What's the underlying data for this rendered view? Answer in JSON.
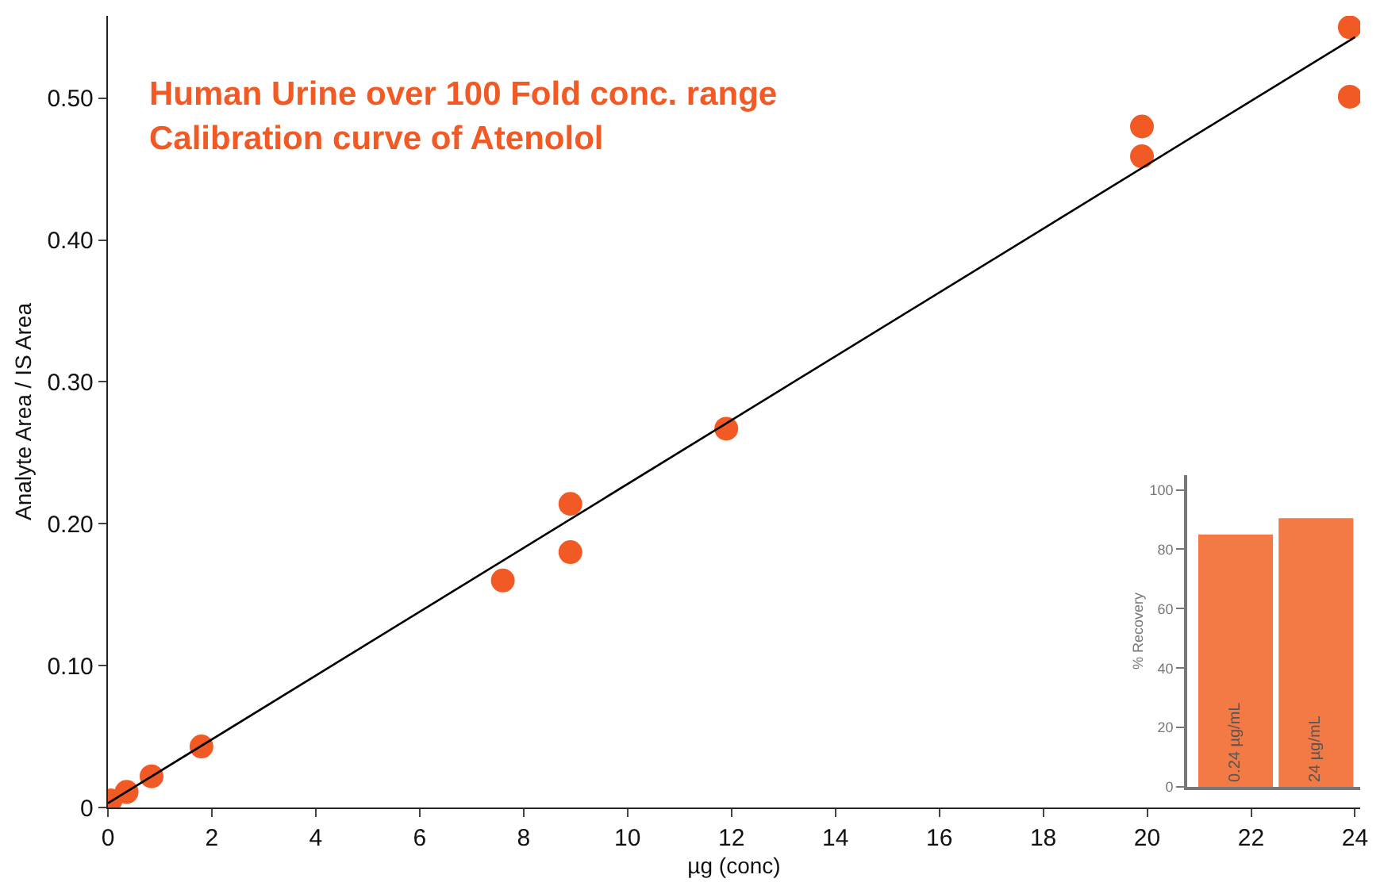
{
  "chart_data": [
    {
      "type": "scatter",
      "title": "Human Urine over 100 Fold conc. range",
      "subtitle": "Calibration curve of Atenolol",
      "xlabel": "µg (conc)",
      "ylabel": "Analyte Area / IS Area",
      "xlim": [
        0,
        24.1
      ],
      "xticks": [
        0,
        2,
        4,
        6,
        8,
        10,
        12,
        14,
        16,
        18,
        20,
        22,
        24
      ],
      "ylim": [
        0,
        0.558
      ],
      "yticks": [
        0,
        {
          "value": 0.1,
          "label": "0.10"
        },
        {
          "value": 0.2,
          "label": "0.20"
        },
        {
          "value": 0.3,
          "label": "0.30"
        },
        {
          "value": 0.4,
          "label": "0.40"
        },
        {
          "value": 0.5,
          "label": "0.50"
        }
      ],
      "legend": false,
      "series": [
        {
          "type": "scatter",
          "color": "#f15a24",
          "marker": "circle",
          "x": [
            0.05,
            0.36,
            0.84,
            1.8,
            7.6,
            8.9,
            8.9,
            11.9,
            19.9,
            19.9,
            23.9,
            23.9
          ],
          "values": [
            0.005,
            0.011,
            0.022,
            0.043,
            0.16,
            0.214,
            0.18,
            0.267,
            0.48,
            0.459,
            0.55,
            0.501
          ]
        },
        {
          "type": "line",
          "color": "#000000",
          "x": [
            0,
            24
          ],
          "values": [
            0.003,
            0.543
          ],
          "marker": "none",
          "line_style": "solid"
        }
      ]
    },
    {
      "type": "bar",
      "ylabel": "% Recovery",
      "categories": [
        "0.24 µg/mL",
        "24 µg/mL"
      ],
      "values": [
        85,
        90.5
      ],
      "color": "#f37a45",
      "ylim": [
        0,
        105
      ],
      "yticks": [
        0,
        20,
        40,
        60,
        80,
        100
      ],
      "tick_labels": "y",
      "legend": false
    }
  ]
}
